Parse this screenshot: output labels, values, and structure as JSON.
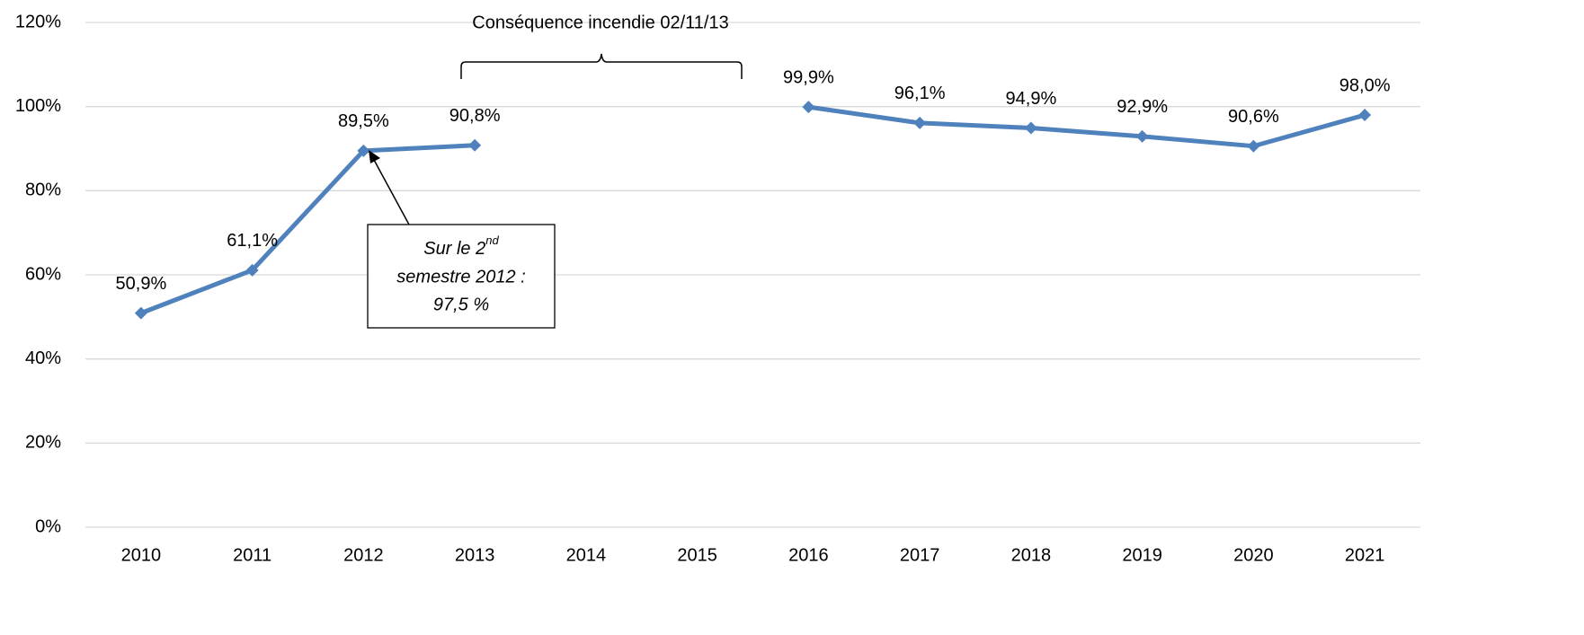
{
  "chart_data": {
    "type": "line",
    "categories": [
      "2010",
      "2011",
      "2012",
      "2013",
      "2014",
      "2015",
      "2016",
      "2017",
      "2018",
      "2019",
      "2020",
      "2021"
    ],
    "series": [
      {
        "color": "#4f81bd",
        "values": [
          50.9,
          61.1,
          89.5,
          90.8,
          null,
          null,
          99.9,
          96.1,
          94.9,
          92.9,
          90.6,
          98.0
        ],
        "value_labels": [
          "50,9%",
          "61,1%",
          "89,5%",
          "90,8%",
          null,
          null,
          "99,9%",
          "96,1%",
          "94,9%",
          "92,9%",
          "90,6%",
          "98,0%"
        ]
      }
    ],
    "ylim": [
      0,
      120
    ],
    "yticks": [
      {
        "value": 0,
        "label": "0%"
      },
      {
        "value": 20,
        "label": "20%"
      },
      {
        "value": 40,
        "label": "40%"
      },
      {
        "value": 60,
        "label": "60%"
      },
      {
        "value": 80,
        "label": "80%"
      },
      {
        "value": 100,
        "label": "100%"
      },
      {
        "value": 120,
        "label": "120%"
      }
    ],
    "grid": true,
    "annotations": {
      "bracket_label": "Conséquence incendie 02/11/13",
      "callout": {
        "line1": "Sur le 2",
        "superscript": "nd",
        "line2": "semestre 2012 :",
        "line3": "97,5 %"
      }
    }
  }
}
